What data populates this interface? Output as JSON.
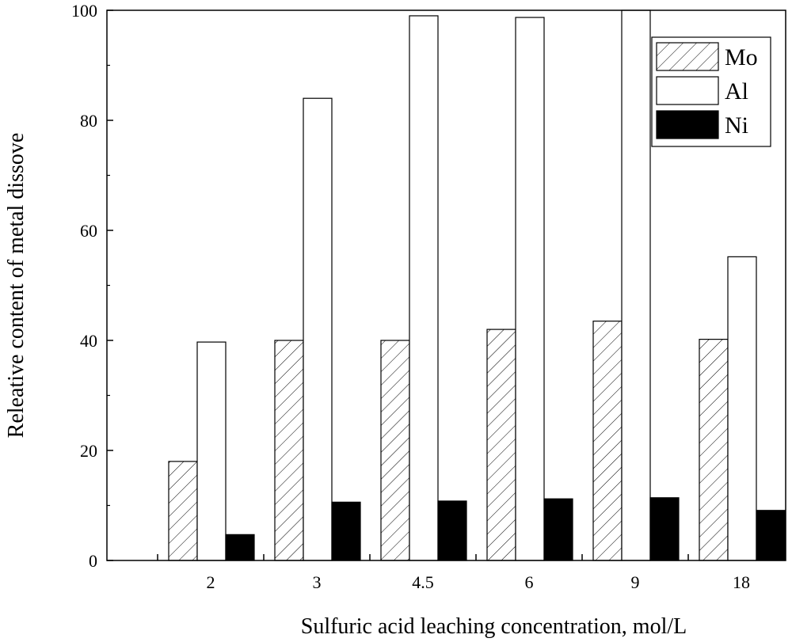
{
  "chart_data": {
    "type": "bar",
    "categories": [
      "2",
      "3",
      "4.5",
      "6",
      "9",
      "18"
    ],
    "series": [
      {
        "name": "Mo",
        "values": [
          18,
          40,
          40,
          42,
          43.5,
          40.2
        ],
        "fill": "hatch"
      },
      {
        "name": "Al",
        "values": [
          39.7,
          84,
          99,
          98.7,
          100,
          55.2
        ],
        "fill": "#ffffff"
      },
      {
        "name": "Ni",
        "values": [
          4.7,
          10.6,
          10.8,
          11.2,
          11.4,
          9.1
        ],
        "fill": "#000000"
      }
    ],
    "xlabel": "Sulfuric acid leaching concentration, mol/L",
    "ylabel": "Releative content of metal dissove",
    "ylim": [
      0,
      100
    ],
    "yticks": [
      0,
      20,
      40,
      60,
      80,
      100
    ],
    "grid": false,
    "legend": "top-right"
  }
}
